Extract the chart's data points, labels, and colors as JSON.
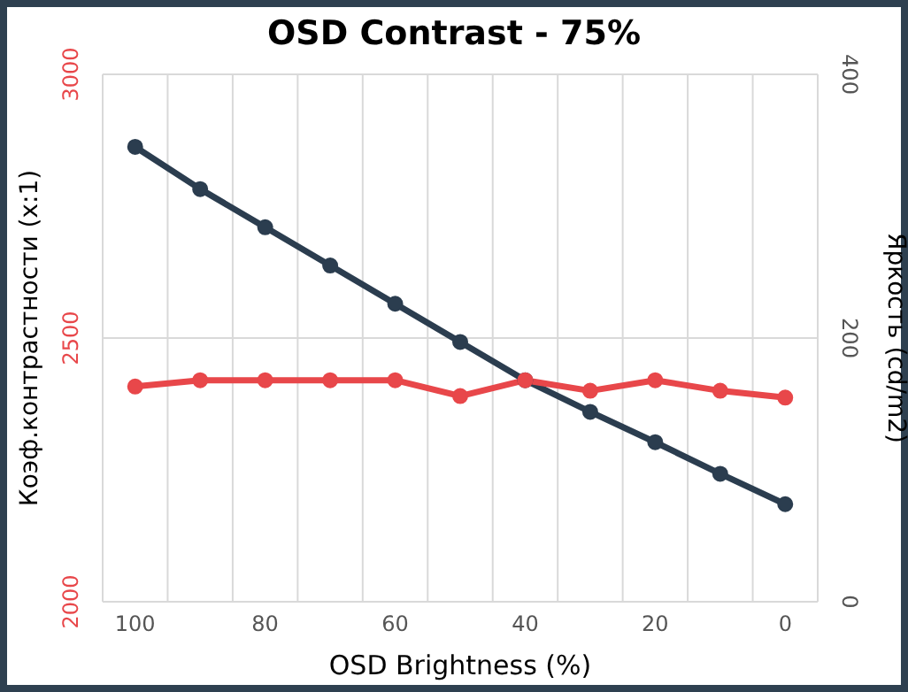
{
  "chart_data": {
    "type": "line",
    "title": "OSD Contrast - 75%",
    "xlabel": "OSD Brightness (%)",
    "ylabel": "Коэф.контрастности (x:1)",
    "y2label": "Яркость (cd/m2)",
    "categories": [
      "100",
      null,
      "80",
      null,
      "60",
      null,
      "40",
      null,
      "20",
      null,
      "0"
    ],
    "series": [
      {
        "color": "#e8474a",
        "values": [
          2408,
          2420,
          2420,
          2420,
          2420,
          2390,
          2420,
          2400,
          2420,
          2400,
          2387
        ]
      },
      {
        "color": "#2b3d4f",
        "axis": "y2",
        "values": [
          345,
          313,
          284,
          255,
          226,
          197,
          168,
          144,
          121,
          97,
          74
        ]
      }
    ],
    "ylim": [
      2000,
      3000
    ],
    "yticks": [
      2000,
      2500,
      3000
    ],
    "y2lim": [
      0,
      400
    ],
    "y2ticks": [
      0,
      200,
      400
    ],
    "grid": true,
    "marker": "circle",
    "line_style": "solid"
  }
}
